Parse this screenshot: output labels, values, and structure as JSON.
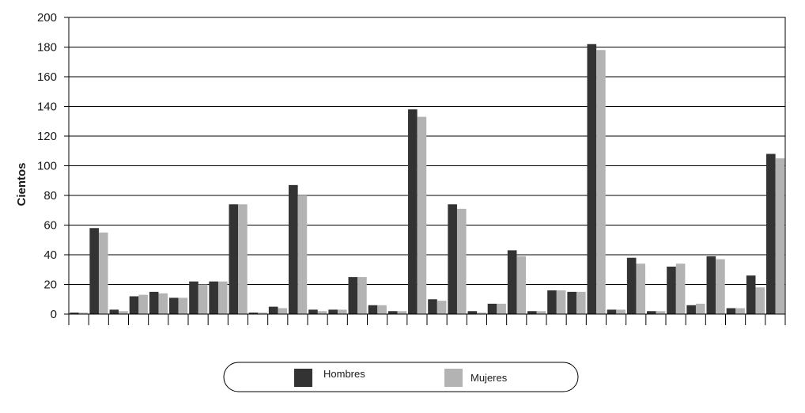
{
  "chart_data": {
    "type": "bar",
    "ylabel": "Cientos",
    "xlabel": "",
    "title": "",
    "ylim": [
      0,
      200
    ],
    "yticks": [
      0,
      20,
      40,
      60,
      80,
      100,
      120,
      140,
      160,
      180,
      200
    ],
    "grid": "horizontal",
    "legend": "bottom-center",
    "colors": {
      "Hombres": "#333333",
      "Mujeres": "#b3b3b3"
    },
    "series": [
      {
        "name": "Hombres",
        "values": [
          1,
          58,
          3,
          12,
          15,
          11,
          22,
          22,
          74,
          1,
          5,
          87,
          3,
          3,
          25,
          6,
          2,
          138,
          10,
          74,
          2,
          7,
          43,
          2,
          16,
          15,
          182,
          3,
          38,
          2,
          32,
          6,
          39,
          4,
          26,
          108
        ]
      },
      {
        "name": "Mujeres",
        "values": [
          1,
          55,
          2,
          13,
          14,
          11,
          20,
          22,
          74,
          1,
          4,
          80,
          2,
          3,
          25,
          6,
          2,
          133,
          9,
          71,
          1,
          7,
          39,
          2,
          16,
          15,
          178,
          3,
          34,
          2,
          34,
          7,
          37,
          4,
          18,
          105
        ]
      }
    ]
  }
}
